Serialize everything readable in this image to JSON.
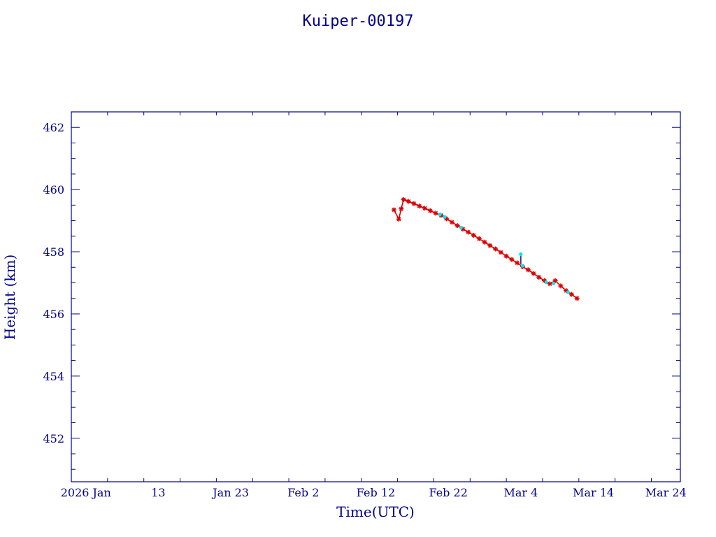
{
  "chart_data": {
    "type": "scatter",
    "title": "Kuiper-00197",
    "xlabel": "Time(UTC)",
    "ylabel": "Height (km)",
    "xlim": [
      "2026-01-01",
      "2026-03-26"
    ],
    "ylim": [
      450.6,
      462.5
    ],
    "x_ticks": [
      {
        "date": "2026-01-03",
        "label": "2026 Jan"
      },
      {
        "date": "2026-01-13",
        "label": "13"
      },
      {
        "date": "2026-01-23",
        "label": "Jan 23"
      },
      {
        "date": "2026-02-02",
        "label": "Feb  2"
      },
      {
        "date": "2026-02-12",
        "label": "Feb 12"
      },
      {
        "date": "2026-02-22",
        "label": "Feb 22"
      },
      {
        "date": "2026-03-04",
        "label": "Mar  4"
      },
      {
        "date": "2026-03-14",
        "label": "Mar 14"
      },
      {
        "date": "2026-03-24",
        "label": "Mar 24"
      }
    ],
    "y_ticks": [
      452,
      454,
      456,
      458,
      460,
      462
    ],
    "grid": false,
    "colors": {
      "frame": "#00008b",
      "primary": "#dd0000",
      "secondary": "#00e5ee"
    },
    "series": [
      {
        "color": "#dd0000",
        "marker": "star",
        "points": [
          [
            "2026-02-14T12:00",
            459.35
          ],
          [
            "2026-02-15T04:00",
            459.05
          ],
          [
            "2026-02-15T12:00",
            459.38
          ],
          [
            "2026-02-15T20:00",
            459.68
          ],
          [
            "2026-02-16T12:00",
            459.62
          ],
          [
            "2026-02-17T06:00",
            459.55
          ],
          [
            "2026-02-18T00:00",
            459.47
          ],
          [
            "2026-02-18T18:00",
            459.4
          ],
          [
            "2026-02-19T12:00",
            459.32
          ],
          [
            "2026-02-20T06:00",
            459.24
          ],
          [
            "2026-02-21T00:00",
            459.17
          ],
          [
            "2026-02-21T18:00",
            459.06
          ],
          [
            "2026-02-22T12:00",
            458.95
          ],
          [
            "2026-02-23T06:00",
            458.84
          ],
          [
            "2026-02-24T00:00",
            458.73
          ],
          [
            "2026-02-24T18:00",
            458.63
          ],
          [
            "2026-02-25T12:00",
            458.53
          ],
          [
            "2026-02-26T06:00",
            458.42
          ],
          [
            "2026-02-27T00:00",
            458.31
          ],
          [
            "2026-02-27T18:00",
            458.2
          ],
          [
            "2026-02-28T12:00",
            458.09
          ],
          [
            "2026-03-01T06:00",
            457.98
          ],
          [
            "2026-03-02T00:00",
            457.86
          ],
          [
            "2026-03-02T18:00",
            457.75
          ],
          [
            "2026-03-03T12:00",
            457.64
          ],
          [
            "2026-03-04T06:00",
            457.52
          ],
          [
            "2026-03-05T00:00",
            457.42
          ],
          [
            "2026-03-05T18:00",
            457.3
          ],
          [
            "2026-03-06T12:00",
            457.18
          ],
          [
            "2026-03-07T06:00",
            457.07
          ],
          [
            "2026-03-08T00:00",
            456.97
          ],
          [
            "2026-03-08T18:00",
            457.07
          ],
          [
            "2026-03-09T12:00",
            456.9
          ],
          [
            "2026-03-10T06:00",
            456.75
          ],
          [
            "2026-03-11T00:00",
            456.63
          ],
          [
            "2026-03-11T18:00",
            456.5
          ]
        ]
      },
      {
        "color": "#00e5ee",
        "marker": "dot",
        "points": [
          [
            "2026-02-20T20:00",
            459.2
          ],
          [
            "2026-02-21T12:00",
            459.12
          ],
          [
            "2026-02-23T18:00",
            458.78
          ],
          [
            "2026-03-04T00:00",
            457.92
          ],
          [
            "2026-03-04T06:00",
            457.55
          ],
          [
            "2026-03-07T12:00",
            457.02
          ],
          [
            "2026-03-08T12:00",
            456.98
          ],
          [
            "2026-03-10T12:00",
            456.7
          ]
        ]
      }
    ]
  }
}
